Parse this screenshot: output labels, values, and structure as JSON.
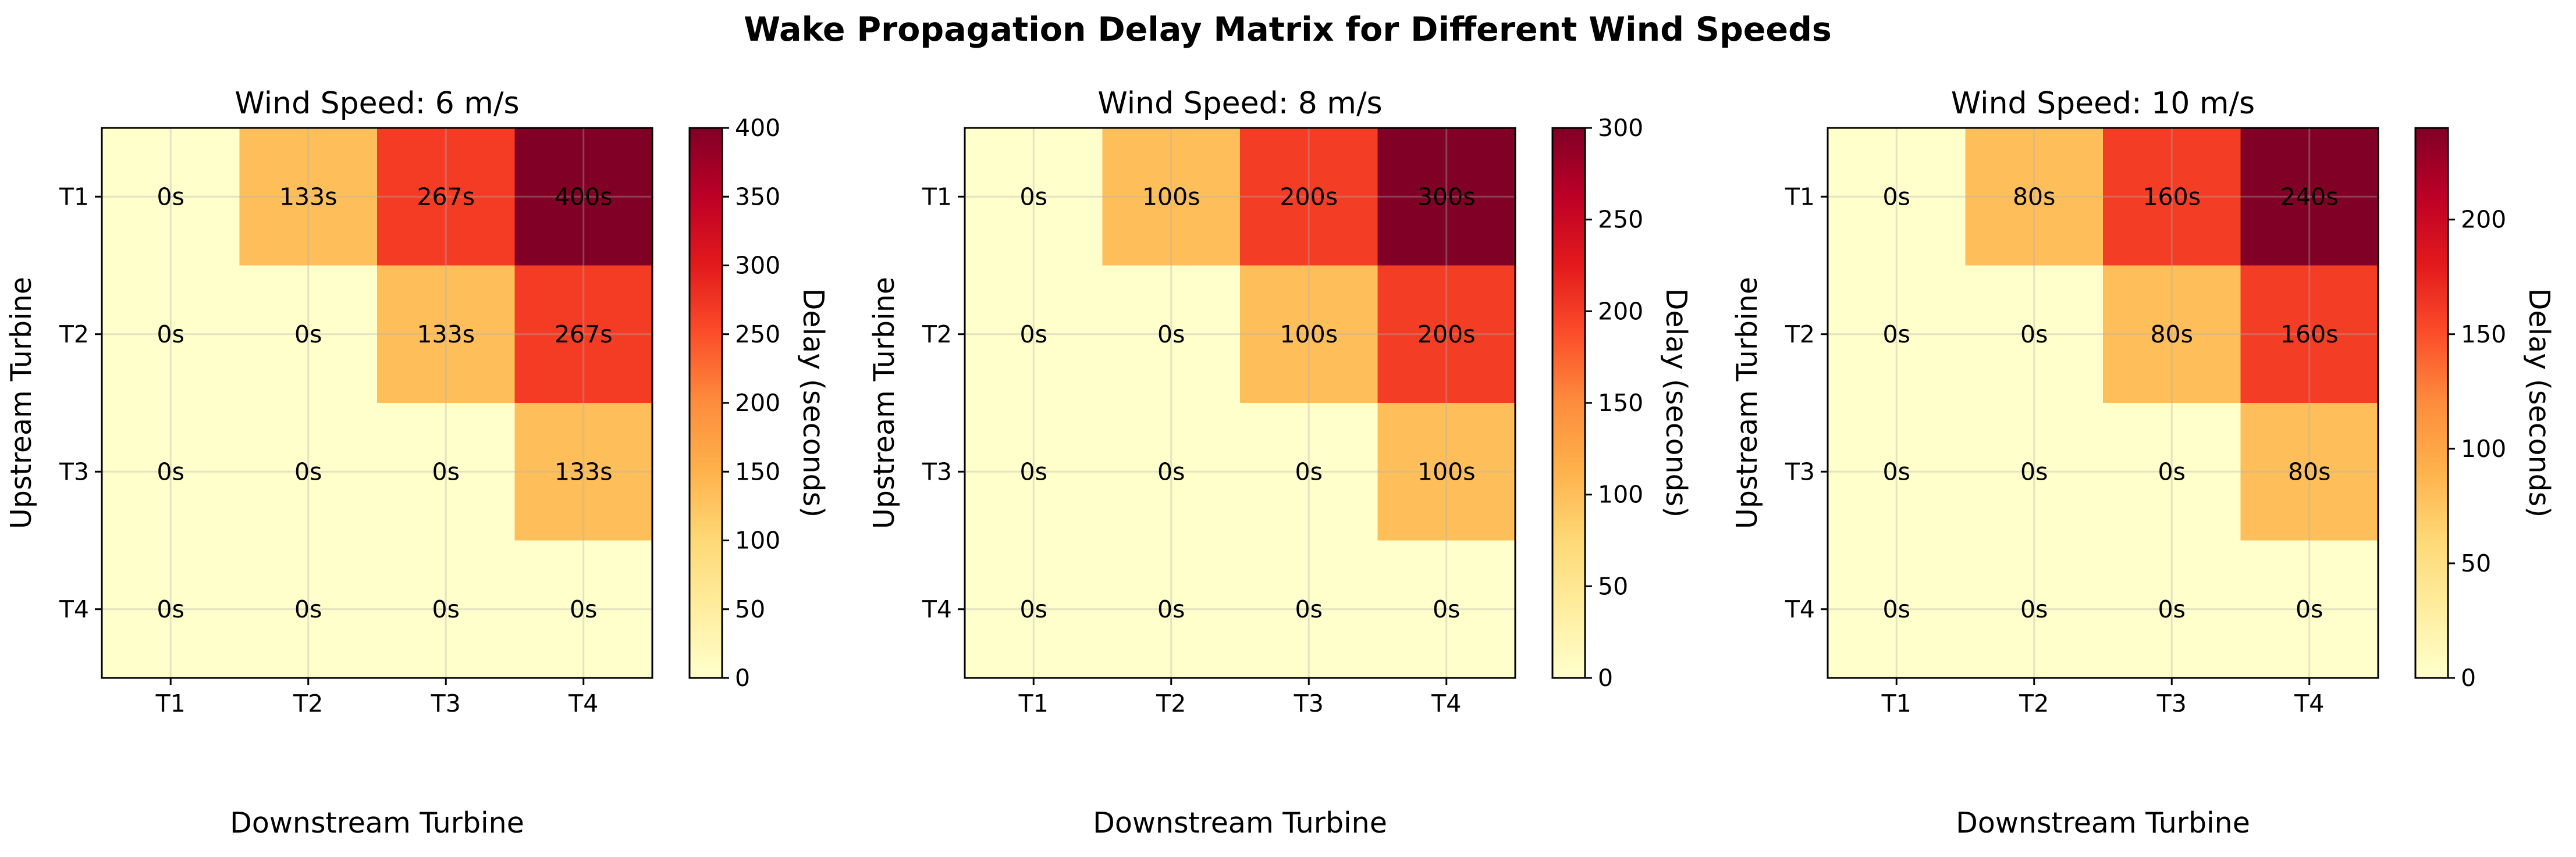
{
  "figure_title": "Wake Propagation Delay Matrix for Different Wind Speeds",
  "chart_data": [
    {
      "type": "heatmap",
      "title": "Wind Speed: 6 m/s",
      "xlabel": "Downstream Turbine",
      "ylabel": "Upstream Turbine",
      "x_categories": [
        "T1",
        "T2",
        "T3",
        "T4"
      ],
      "y_categories": [
        "T1",
        "T2",
        "T3",
        "T4"
      ],
      "values": [
        [
          0,
          133,
          267,
          400
        ],
        [
          0,
          0,
          133,
          267
        ],
        [
          0,
          0,
          0,
          133
        ],
        [
          0,
          0,
          0,
          0
        ]
      ],
      "labels": [
        [
          "0s",
          "133s",
          "267s",
          "400s"
        ],
        [
          "0s",
          "0s",
          "133s",
          "267s"
        ],
        [
          "0s",
          "0s",
          "0s",
          "133s"
        ],
        [
          "0s",
          "0s",
          "0s",
          "0s"
        ]
      ],
      "colorbar": {
        "label": "Delay (seconds)",
        "range": [
          0,
          400
        ],
        "ticks": [
          "0",
          "50",
          "100",
          "150",
          "200",
          "250",
          "300",
          "350",
          "400"
        ]
      },
      "colormap": "YlOrRd",
      "grid": true
    },
    {
      "type": "heatmap",
      "title": "Wind Speed: 8 m/s",
      "xlabel": "Downstream Turbine",
      "ylabel": "Upstream Turbine",
      "x_categories": [
        "T1",
        "T2",
        "T3",
        "T4"
      ],
      "y_categories": [
        "T1",
        "T2",
        "T3",
        "T4"
      ],
      "values": [
        [
          0,
          100,
          200,
          300
        ],
        [
          0,
          0,
          100,
          200
        ],
        [
          0,
          0,
          0,
          100
        ],
        [
          0,
          0,
          0,
          0
        ]
      ],
      "labels": [
        [
          "0s",
          "100s",
          "200s",
          "300s"
        ],
        [
          "0s",
          "0s",
          "100s",
          "200s"
        ],
        [
          "0s",
          "0s",
          "0s",
          "100s"
        ],
        [
          "0s",
          "0s",
          "0s",
          "0s"
        ]
      ],
      "colorbar": {
        "label": "Delay (seconds)",
        "range": [
          0,
          300
        ],
        "ticks": [
          "0",
          "50",
          "100",
          "150",
          "200",
          "250",
          "300"
        ]
      },
      "colormap": "YlOrRd",
      "grid": true
    },
    {
      "type": "heatmap",
      "title": "Wind Speed: 10 m/s",
      "xlabel": "Downstream Turbine",
      "ylabel": "Upstream Turbine",
      "x_categories": [
        "T1",
        "T2",
        "T3",
        "T4"
      ],
      "y_categories": [
        "T1",
        "T2",
        "T3",
        "T4"
      ],
      "values": [
        [
          0,
          80,
          160,
          240
        ],
        [
          0,
          0,
          80,
          160
        ],
        [
          0,
          0,
          0,
          80
        ],
        [
          0,
          0,
          0,
          0
        ]
      ],
      "labels": [
        [
          "0s",
          "80s",
          "160s",
          "240s"
        ],
        [
          "0s",
          "0s",
          "80s",
          "160s"
        ],
        [
          "0s",
          "0s",
          "0s",
          "80s"
        ],
        [
          "0s",
          "0s",
          "0s",
          "0s"
        ]
      ],
      "colorbar": {
        "label": "Delay (seconds)",
        "range": [
          0,
          240
        ],
        "ticks": [
          "0",
          "50",
          "100",
          "150",
          "200"
        ]
      },
      "colormap": "YlOrRd",
      "grid": true
    }
  ]
}
